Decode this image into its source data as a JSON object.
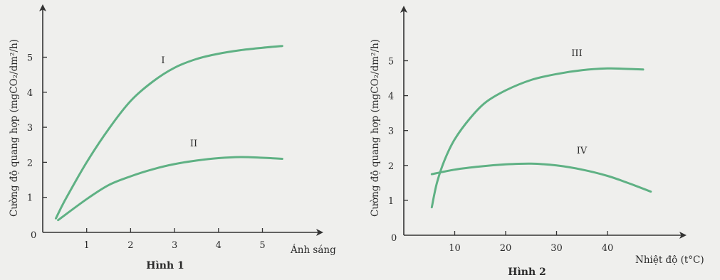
{
  "chart_data": [
    {
      "type": "line",
      "title": "Hình 1",
      "xlabel": "Ánh sáng",
      "ylabel": "Cường độ quang hợp (mgCO₂/dm²/h)",
      "xlim": [
        0,
        5.8
      ],
      "ylim": [
        0,
        6
      ],
      "x_ticks": [
        "1",
        "2",
        "3",
        "4",
        "5"
      ],
      "y_ticks": [
        "0",
        "1",
        "2",
        "3",
        "4",
        "5"
      ],
      "series": [
        {
          "name": "I",
          "color": "#5fb184",
          "x": [
            0.3,
            0.5,
            1.0,
            1.5,
            2.0,
            2.5,
            3.0,
            3.5,
            4.0,
            4.5,
            5.0,
            5.45
          ],
          "y": [
            0.4,
            0.9,
            2.0,
            2.95,
            3.75,
            4.3,
            4.7,
            4.95,
            5.1,
            5.2,
            5.27,
            5.32
          ]
        },
        {
          "name": "II",
          "color": "#5fb184",
          "x": [
            0.35,
            1.0,
            1.5,
            2.0,
            2.5,
            3.0,
            3.5,
            4.0,
            4.5,
            5.0,
            5.45
          ],
          "y": [
            0.35,
            0.95,
            1.35,
            1.6,
            1.8,
            1.95,
            2.05,
            2.12,
            2.15,
            2.13,
            2.1
          ]
        }
      ]
    },
    {
      "type": "line",
      "title": "Hình 2",
      "xlabel": "Nhiệt độ (t°C)",
      "ylabel": "Cường độ quang hợp (mgCO₂/dm²/h)",
      "xlim": [
        0,
        52
      ],
      "ylim": [
        0,
        6
      ],
      "x_ticks": [
        "10",
        "20",
        "30",
        "40"
      ],
      "y_ticks": [
        "0",
        "1",
        "2",
        "3",
        "4",
        "5"
      ],
      "series": [
        {
          "name": "III",
          "color": "#5fb184",
          "x": [
            5.5,
            6.5,
            8,
            10,
            13,
            16,
            20,
            25,
            30,
            35,
            40,
            43,
            47
          ],
          "y": [
            0.8,
            1.5,
            2.15,
            2.75,
            3.35,
            3.8,
            4.15,
            4.45,
            4.62,
            4.73,
            4.78,
            4.77,
            4.75
          ]
        },
        {
          "name": "IV",
          "color": "#5fb184",
          "x": [
            5.5,
            10,
            15,
            20,
            25,
            30,
            35,
            40,
            44,
            48.5
          ],
          "y": [
            1.75,
            1.88,
            1.97,
            2.03,
            2.05,
            2.0,
            1.88,
            1.7,
            1.5,
            1.25
          ]
        }
      ]
    }
  ]
}
